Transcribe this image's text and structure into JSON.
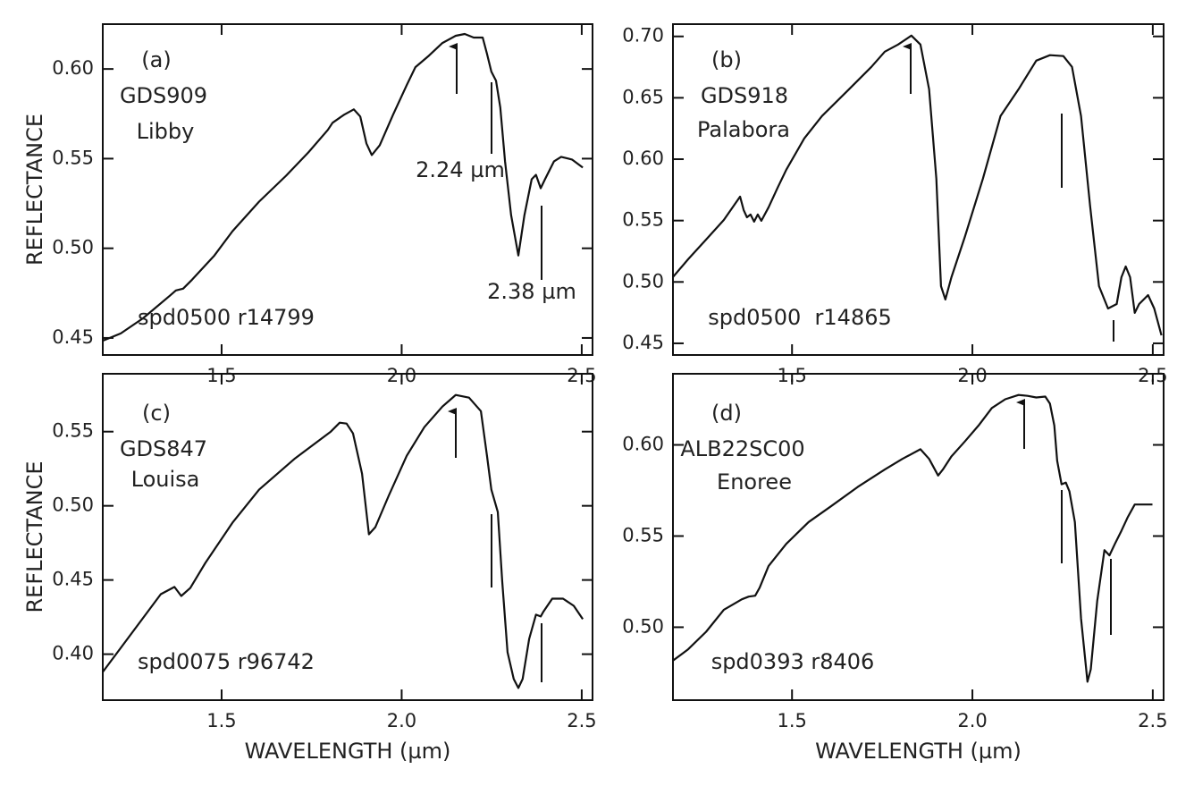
{
  "chart_data": [
    {
      "type": "line",
      "annotations": [
        "(a)",
        "GDS909",
        "Libby",
        "2.24 µm",
        "2.38 µm",
        "spd0500 r14799"
      ],
      "ylabel": "REFLECTANCE",
      "xlim": [
        1.17,
        2.53
      ],
      "xticks": [
        1.5,
        {
          "value": 2.0,
          "label": "2.0"
        },
        2.5
      ],
      "ylim": [
        0.4405,
        0.625
      ],
      "yticks": [
        0.45,
        {
          "value": 0.5,
          "label": "0.50"
        },
        0.55,
        {
          "value": 0.6,
          "label": "0.60"
        }
      ],
      "x": [
        1.17,
        1.22,
        1.282,
        1.356,
        1.373,
        1.393,
        1.418,
        1.48,
        1.53,
        1.604,
        1.679,
        1.741,
        1.795,
        1.808,
        1.84,
        1.867,
        1.885,
        1.902,
        1.917,
        1.939,
        1.976,
        2.014,
        2.038,
        2.076,
        2.113,
        2.15,
        2.175,
        2.2,
        2.225,
        2.237,
        2.249,
        2.262,
        2.274,
        2.287,
        2.304,
        2.324,
        2.341,
        2.361,
        2.373,
        2.386,
        2.398,
        2.423,
        2.443,
        2.473,
        2.503
      ],
      "series": [
        {
          "color": "#111111",
          "values": [
            0.4485,
            0.4525,
            0.461,
            0.4735,
            0.4765,
            0.4775,
            0.4825,
            0.496,
            0.5095,
            0.526,
            0.5405,
            0.5535,
            0.566,
            0.57,
            0.5745,
            0.5775,
            0.5735,
            0.5585,
            0.552,
            0.5575,
            0.5745,
            0.591,
            0.601,
            0.6075,
            0.6145,
            0.6185,
            0.6195,
            0.6175,
            0.6175,
            0.6085,
            0.5985,
            0.5935,
            0.5785,
            0.5485,
            0.5185,
            0.496,
            0.5185,
            0.5385,
            0.541,
            0.5335,
            0.5385,
            0.5485,
            0.551,
            0.5495,
            0.545
          ]
        }
      ]
    },
    {
      "type": "line",
      "annotations": [
        "(b)",
        "GDS918",
        "Palabora",
        "spd0500  r14865"
      ],
      "xlim": [
        1.17,
        2.53
      ],
      "xticks": [
        1.5,
        {
          "value": 2.0,
          "label": "2.0"
        },
        2.5
      ],
      "ylim": [
        0.4405,
        0.71
      ],
      "yticks": [
        0.45,
        {
          "value": 0.5,
          "label": "0.50"
        },
        0.55,
        {
          "value": 0.6,
          "label": "0.60"
        },
        0.65,
        {
          "value": 0.7,
          "label": "0.70"
        }
      ],
      "x": [
        1.17,
        1.212,
        1.262,
        1.311,
        1.356,
        1.366,
        1.375,
        1.385,
        1.395,
        1.405,
        1.415,
        1.435,
        1.46,
        1.484,
        1.534,
        1.583,
        1.658,
        1.72,
        1.757,
        1.794,
        1.831,
        1.856,
        1.88,
        1.9,
        1.913,
        1.925,
        1.942,
        1.979,
        2.029,
        2.078,
        2.128,
        2.177,
        2.215,
        2.252,
        2.276,
        2.301,
        2.326,
        2.351,
        2.376,
        2.4,
        2.413,
        2.425,
        2.437,
        2.45,
        2.462,
        2.487,
        2.504,
        2.524
      ],
      "series": [
        {
          "color": "#111111",
          "values": [
            0.504,
            0.5185,
            0.5345,
            0.5505,
            0.5695,
            0.5586,
            0.5527,
            0.5549,
            0.5491,
            0.5549,
            0.5498,
            0.5608,
            0.5768,
            0.5914,
            0.6169,
            0.6351,
            0.657,
            0.6752,
            0.6876,
            0.6934,
            0.7007,
            0.6934,
            0.657,
            0.5841,
            0.4966,
            0.4857,
            0.5039,
            0.5367,
            0.5841,
            0.6351,
            0.657,
            0.6803,
            0.6847,
            0.684,
            0.6752,
            0.6351,
            0.5622,
            0.4966,
            0.4784,
            0.482,
            0.5039,
            0.5126,
            0.5039,
            0.4748,
            0.482,
            0.4893,
            0.4784,
            0.4565
          ]
        }
      ]
    },
    {
      "type": "line",
      "annotations": [
        "(c)",
        "GDS847",
        "Louisa",
        "spd0075 r96742"
      ],
      "ylabel": "REFLECTANCE",
      "xlabel": "WAVELENGTH (µm)",
      "xlim": [
        1.17,
        2.53
      ],
      "xticks": [
        1.5,
        {
          "value": 2.0,
          "label": "2.0"
        },
        2.5
      ],
      "ylim": [
        0.369,
        0.589
      ],
      "yticks": [
        {
          "value": 0.4,
          "label": "0.40"
        },
        0.45,
        {
          "value": 0.5,
          "label": "0.50"
        },
        0.55
      ],
      "x": [
        1.17,
        1.331,
        1.369,
        1.388,
        1.413,
        1.455,
        1.53,
        1.604,
        1.704,
        1.803,
        1.828,
        1.847,
        1.865,
        1.89,
        1.909,
        1.927,
        1.964,
        2.014,
        2.063,
        2.113,
        2.15,
        2.187,
        2.22,
        2.237,
        2.249,
        2.267,
        2.279,
        2.294,
        2.311,
        2.324,
        2.336,
        2.354,
        2.373,
        2.386,
        2.393,
        2.418,
        2.448,
        2.478,
        2.503
      ],
      "series": [
        {
          "color": "#111111",
          "values": [
            0.388,
            0.4404,
            0.4453,
            0.4392,
            0.4446,
            0.4615,
            0.4886,
            0.5109,
            0.532,
            0.55,
            0.556,
            0.5554,
            0.5488,
            0.5217,
            0.4808,
            0.4856,
            0.5067,
            0.5337,
            0.553,
            0.5669,
            0.5747,
            0.5729,
            0.5638,
            0.5337,
            0.5109,
            0.4958,
            0.4495,
            0.4013,
            0.3833,
            0.3772,
            0.3833,
            0.4103,
            0.4266,
            0.4254,
            0.4284,
            0.4374,
            0.4374,
            0.4326,
            0.4236
          ]
        }
      ]
    },
    {
      "type": "line",
      "annotations": [
        "(d)",
        "ALB22SC00",
        "Enoree",
        "spd0393 r8406"
      ],
      "xlabel": "WAVELENGTH (µm)",
      "xlim": [
        1.17,
        2.53
      ],
      "xticks": [
        1.5,
        {
          "value": 2.0,
          "label": "2.0"
        },
        2.5
      ],
      "ylim": [
        0.46,
        0.639
      ],
      "yticks": [
        {
          "value": 0.5,
          "label": "0.50"
        },
        0.55,
        {
          "value": 0.6,
          "label": "0.60"
        }
      ],
      "x": [
        1.17,
        1.212,
        1.262,
        1.311,
        1.361,
        1.38,
        1.398,
        1.41,
        1.435,
        1.484,
        1.546,
        1.608,
        1.682,
        1.757,
        1.806,
        1.856,
        1.88,
        1.905,
        1.918,
        1.942,
        1.979,
        2.017,
        2.054,
        2.091,
        2.128,
        2.153,
        2.177,
        2.202,
        2.215,
        2.227,
        2.235,
        2.247,
        2.259,
        2.269,
        2.284,
        2.301,
        2.319,
        2.328,
        2.346,
        2.366,
        2.38,
        2.395,
        2.413,
        2.43,
        2.45,
        2.474,
        2.499
      ],
      "series": [
        {
          "color": "#111111",
          "values": [
            0.4817,
            0.4879,
            0.4975,
            0.5096,
            0.5153,
            0.5168,
            0.5173,
            0.5216,
            0.5336,
            0.5457,
            0.5577,
            0.5663,
            0.5769,
            0.5865,
            0.5923,
            0.5976,
            0.5923,
            0.5832,
            0.5865,
            0.5937,
            0.6019,
            0.6106,
            0.6202,
            0.625,
            0.6274,
            0.6269,
            0.626,
            0.6265,
            0.6226,
            0.6106,
            0.5913,
            0.5784,
            0.5793,
            0.5745,
            0.5577,
            0.5048,
            0.4701,
            0.4769,
            0.5144,
            0.5423,
            0.5394,
            0.5457,
            0.5529,
            0.5601,
            0.5673,
            0.5673,
            0.5673
          ]
        }
      ]
    }
  ]
}
